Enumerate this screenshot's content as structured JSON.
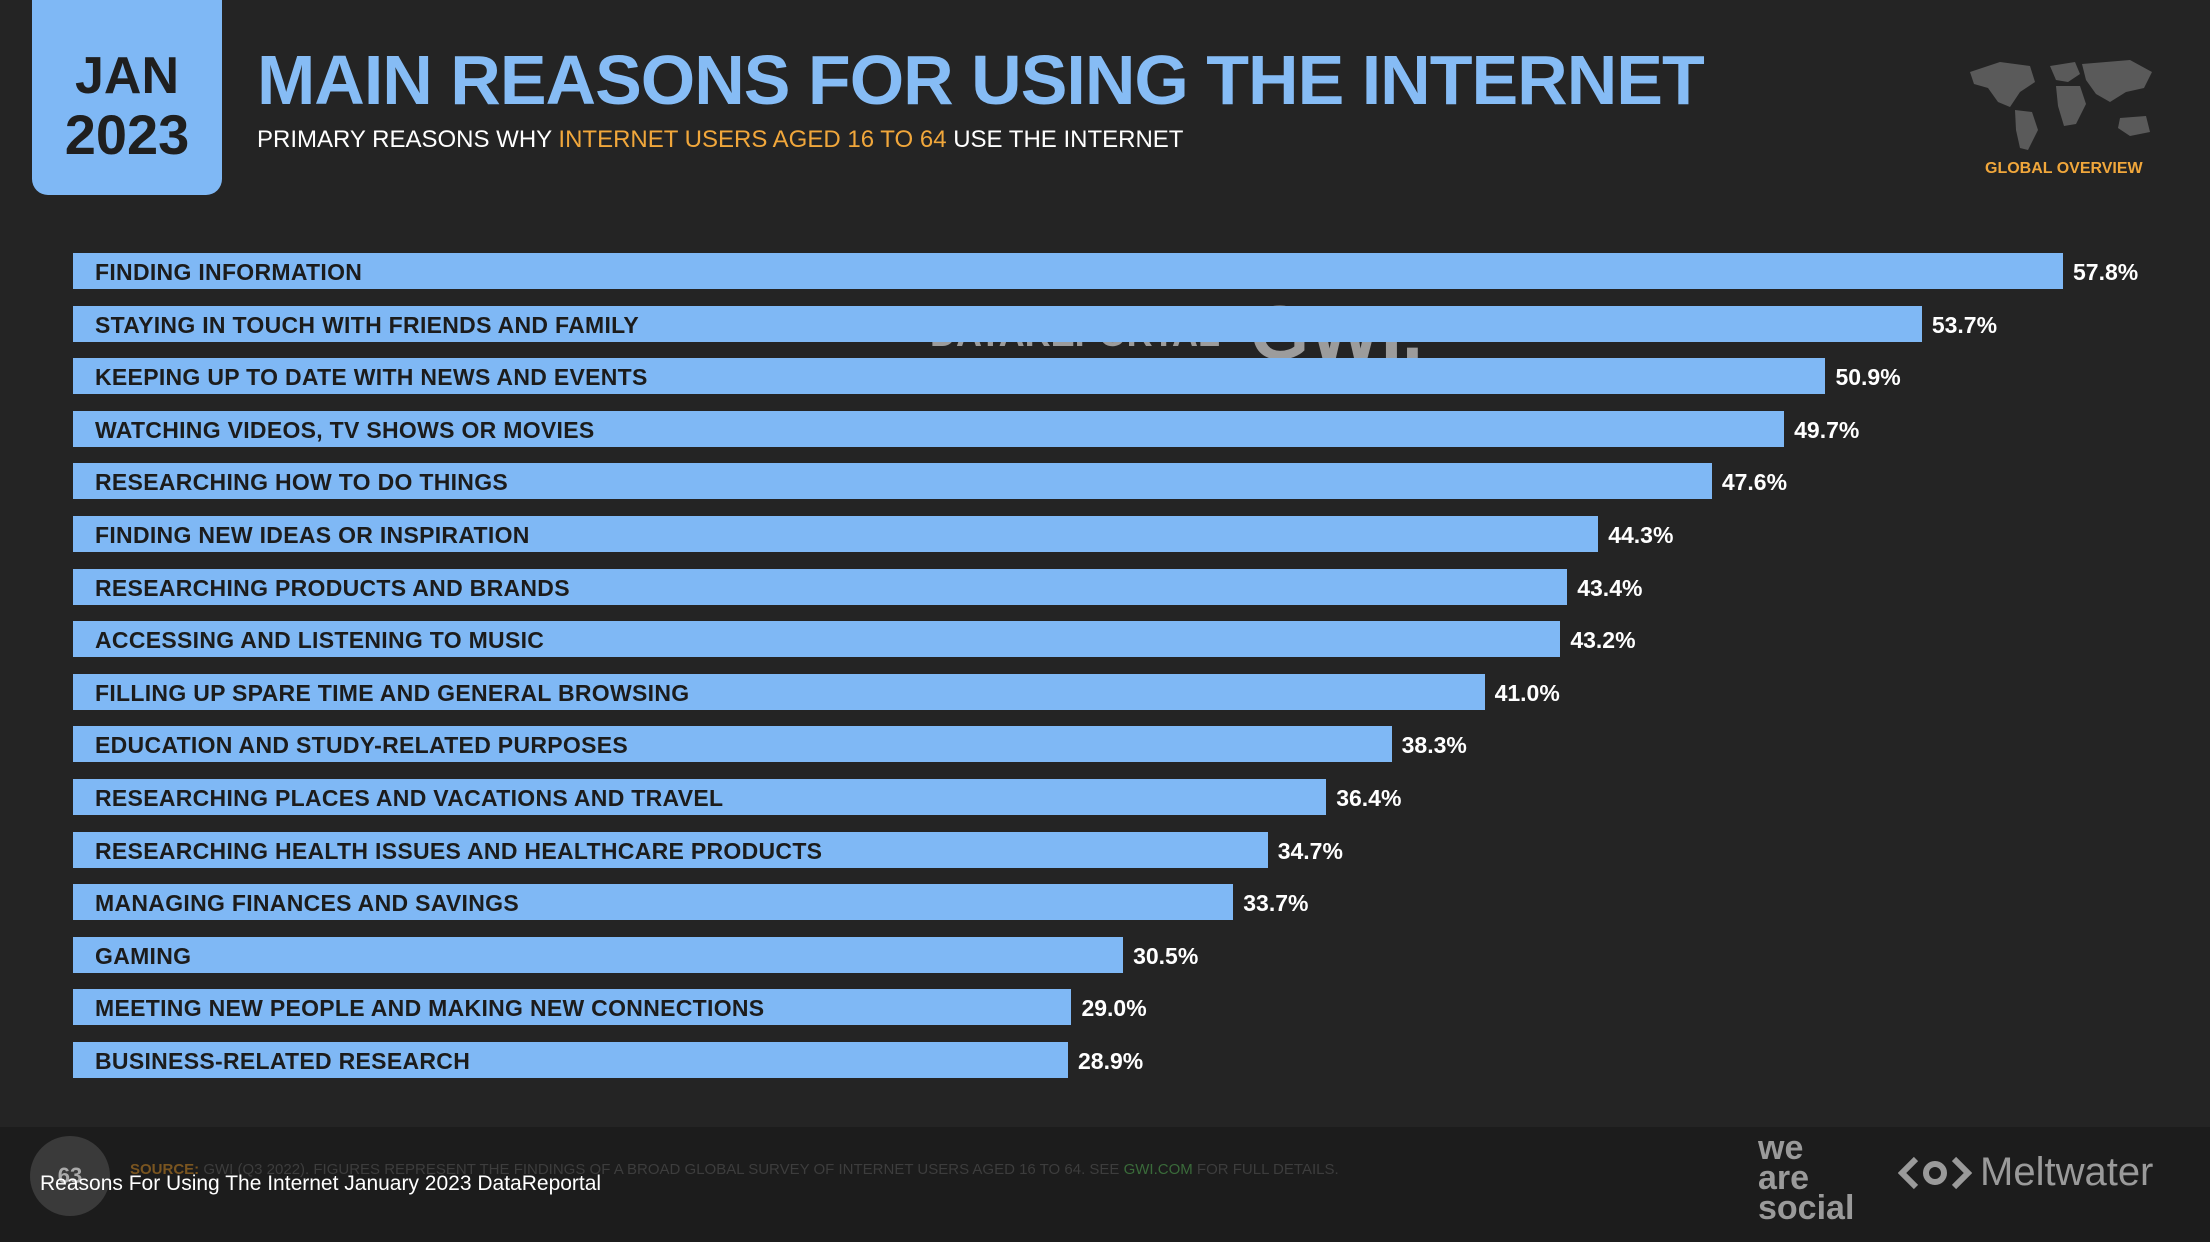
{
  "header": {
    "date_month": "JAN",
    "date_year": "2023",
    "title": "MAIN REASONS FOR USING THE INTERNET",
    "subtitle_pre": "PRIMARY REASONS WHY ",
    "subtitle_highlight": "INTERNET USERS AGED 16 TO 64",
    "subtitle_post": " USE THE INTERNET",
    "global_label": "GLOBAL OVERVIEW"
  },
  "watermark": {
    "datareportal": "DATAREPORTAL",
    "gwi": "GWI."
  },
  "colors": {
    "bar": "#7fb8f5",
    "title": "#86bcf5",
    "accent": "#f1a73b",
    "background": "#242424"
  },
  "chart_data": {
    "type": "bar",
    "orientation": "horizontal",
    "categories": [
      "FINDING INFORMATION",
      "STAYING IN TOUCH WITH FRIENDS AND FAMILY",
      "KEEPING UP TO DATE WITH NEWS AND EVENTS",
      "WATCHING VIDEOS, TV SHOWS OR MOVIES",
      "RESEARCHING HOW TO DO THINGS",
      "FINDING NEW IDEAS OR INSPIRATION",
      "RESEARCHING PRODUCTS AND BRANDS",
      "ACCESSING AND LISTENING TO MUSIC",
      "FILLING UP SPARE TIME AND GENERAL BROWSING",
      "EDUCATION AND STUDY-RELATED PURPOSES",
      "RESEARCHING PLACES AND VACATIONS AND TRAVEL",
      "RESEARCHING HEALTH ISSUES AND HEALTHCARE PRODUCTS",
      "MANAGING FINANCES AND SAVINGS",
      "GAMING",
      "MEETING NEW PEOPLE AND MAKING NEW CONNECTIONS",
      "BUSINESS-RELATED RESEARCH"
    ],
    "values": [
      57.8,
      53.7,
      50.9,
      49.7,
      47.6,
      44.3,
      43.4,
      43.2,
      41.0,
      38.3,
      36.4,
      34.7,
      33.7,
      30.5,
      29.0,
      28.9
    ],
    "value_labels": [
      "57.8%",
      "53.7%",
      "50.9%",
      "49.7%",
      "47.6%",
      "44.3%",
      "43.4%",
      "43.2%",
      "41.0%",
      "38.3%",
      "36.4%",
      "34.7%",
      "33.7%",
      "30.5%",
      "29.0%",
      "28.9%"
    ],
    "xlim": [
      0,
      57.8
    ]
  },
  "footer": {
    "page_number": "63",
    "source_label": "SOURCE:",
    "source_text": " GWI (Q3 2022). FIGURES REPRESENT THE FINDINGS OF A BROAD GLOBAL SURVEY OF INTERNET USERS AGED 16 TO 64. SEE ",
    "source_link": "GWI.COM",
    "source_end": " FOR FULL DETAILS.",
    "caption": "Reasons For Using The Internet January 2023 DataReportal",
    "brand_we": "we",
    "brand_are": "are",
    "brand_social": "social",
    "brand_meltwater": "Meltwater"
  }
}
